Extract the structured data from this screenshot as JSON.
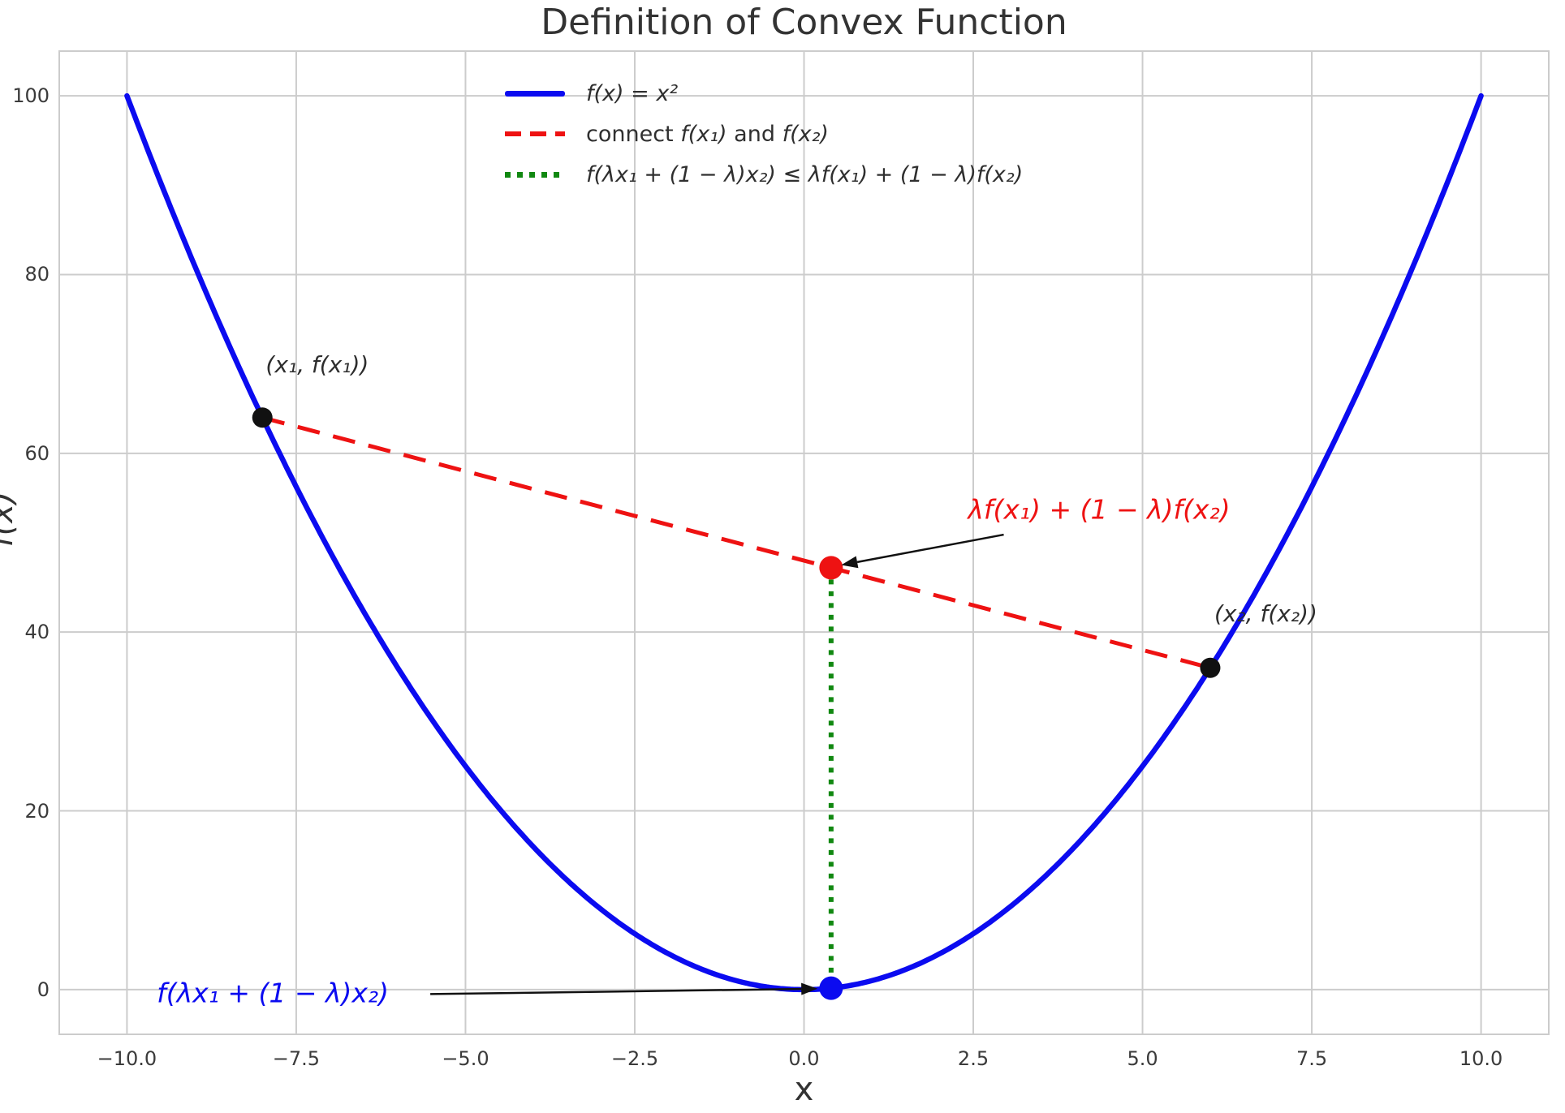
{
  "chart_data": {
    "type": "line",
    "title": "Definition of Convex Function",
    "xlabel": "x",
    "ylabel": "f(x)",
    "xlim": [
      -11,
      11
    ],
    "ylim": [
      -5,
      105
    ],
    "grid": true,
    "grid_color": "#cccccc",
    "axis_text_color": "#3b3b3b",
    "background": "#ffffff",
    "xticks": {
      "values": [
        -10,
        -7.5,
        -5,
        -2.5,
        0,
        2.5,
        5,
        7.5,
        10
      ],
      "labels": [
        "−10.0",
        "−7.5",
        "−5.0",
        "−2.5",
        "0.0",
        "2.5",
        "5.0",
        "7.5",
        "10.0"
      ]
    },
    "yticks": {
      "values": [
        0,
        20,
        40,
        60,
        80,
        100
      ],
      "labels": [
        "0",
        "20",
        "40",
        "60",
        "80",
        "100"
      ]
    },
    "lambda": 0.4,
    "curve": {
      "label": "f(x) = x²",
      "formula": "y = x^2",
      "x_min": -10,
      "x_max": 10,
      "color": "#0b0bf0",
      "style": "solid",
      "width": 6.5
    },
    "chord": {
      "label": "connect f(x₁) and f(x₂)",
      "from": [
        -8,
        64
      ],
      "to": [
        6,
        36
      ],
      "color": "#ee1212",
      "style": "dashed",
      "width": 5
    },
    "vertical_segment": {
      "x": 0.4,
      "y_from": 0.16,
      "y_to": 47.2,
      "color": "#118811",
      "style": "dotted",
      "width": 6
    },
    "points": [
      {
        "id": "x1",
        "x": -8,
        "y": 64,
        "color": "#111111",
        "radius": 12.5
      },
      {
        "id": "x2",
        "x": 6,
        "y": 36,
        "color": "#111111",
        "radius": 12.5
      },
      {
        "id": "chord-value",
        "x": 0.4,
        "y": 47.2,
        "color": "#ee1212",
        "radius": 14.5
      },
      {
        "id": "function-value",
        "x": 0.4,
        "y": 0.16,
        "color": "#0b0bf0",
        "radius": 14.5
      }
    ],
    "annotations": [
      {
        "text": "(x₁, f(x₁))",
        "x": -7.95,
        "y": 69.9,
        "color": "#2d2d2d",
        "font": 28
      },
      {
        "text": "(x₂, f(x₂))",
        "x": 6.06,
        "y": 42.0,
        "color": "#2d2d2d",
        "font": 28
      },
      {
        "text": "λf(x₁) + (1 − λ)f(x₂)",
        "x": 2.42,
        "y": 53.6,
        "color": "#ee1212",
        "font": 33,
        "arrow": {
          "from": [
            2.95,
            50.9
          ],
          "to": [
            0.55,
            47.5
          ]
        }
      },
      {
        "text": "f(λx₁ + (1 − λ)x₂)",
        "x": -9.56,
        "y": -0.46,
        "color": "#0b0bf0",
        "font": 33,
        "arrow": {
          "from": [
            -5.52,
            -0.5
          ],
          "to": [
            0.2,
            0.1
          ]
        }
      }
    ],
    "legend": {
      "position": "upper center",
      "frame": false,
      "items": [
        {
          "label": "f(x) = x²",
          "color": "#0b0bf0",
          "style": "solid"
        },
        {
          "parts": [
            "connect ",
            "f(x₁)",
            " and ",
            "f(x₂)"
          ],
          "color": "#ee1212",
          "style": "dashed"
        },
        {
          "label": "f(λx₁ + (1 − λ)x₂) ≤ λf(x₁) + (1 − λ)f(x₂)",
          "color": "#118811",
          "style": "dotted"
        }
      ]
    }
  }
}
